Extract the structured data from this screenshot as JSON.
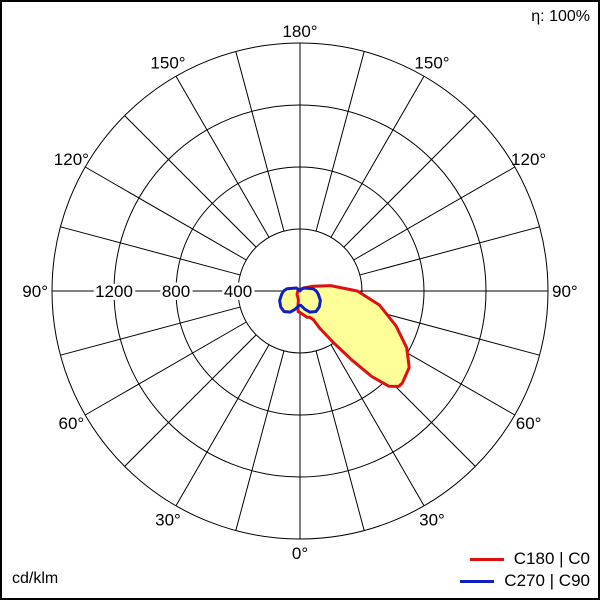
{
  "efficiency_label": "η: 100%",
  "unit_label": "cd/klm",
  "legend": [
    {
      "name": "C180 | C0",
      "color": "#e01010"
    },
    {
      "name": "C270 | C90",
      "color": "#1020c0"
    }
  ],
  "colors": {
    "fill": "#ffff99",
    "grid": "#000000"
  },
  "chart_data": {
    "type": "polar",
    "title": "",
    "radial_axis": {
      "unit": "cd/klm",
      "max": 1600,
      "rings": [
        400,
        800,
        1200,
        1600
      ],
      "tick_labels": [
        "400",
        "800",
        "1200"
      ]
    },
    "angular_ticks": {
      "left": [
        "180°",
        "150°",
        "120°",
        "90°",
        "60°",
        "30°",
        "0°"
      ],
      "right": [
        "150°",
        "120°",
        "90°",
        "60°",
        "30°"
      ]
    },
    "angle_step_deg": 15,
    "series": [
      {
        "name": "C180 | C0",
        "color": "#e01010",
        "curve": [
          {
            "angle": 180,
            "cd": 0
          },
          {
            "angle": 160,
            "cd": 10
          },
          {
            "angle": 140,
            "cd": 20
          },
          {
            "angle": 120,
            "cd": 45
          },
          {
            "angle": 110,
            "cd": 90
          },
          {
            "angle": 100,
            "cd": 200
          },
          {
            "angle": 90,
            "cd": 370
          },
          {
            "angle": 80,
            "cd": 520
          },
          {
            "angle": 70,
            "cd": 660
          },
          {
            "angle": 62,
            "cd": 780
          },
          {
            "angle": 55,
            "cd": 860
          },
          {
            "angle": 48,
            "cd": 888
          },
          {
            "angle": 46,
            "cd": 886
          },
          {
            "angle": 43,
            "cd": 840
          },
          {
            "angle": 40,
            "cd": 720
          },
          {
            "angle": 37,
            "cd": 560
          },
          {
            "angle": 33,
            "cd": 400
          },
          {
            "angle": 28,
            "cd": 270
          },
          {
            "angle": 25,
            "cd": 205
          },
          {
            "angle": 20,
            "cd": 180
          },
          {
            "angle": 15,
            "cd": 175
          },
          {
            "angle": 10,
            "cd": 160
          },
          {
            "angle": 5,
            "cd": 148
          },
          {
            "angle": 0,
            "cd": 138
          },
          {
            "angle": -3,
            "cd": 137
          },
          {
            "angle": -5,
            "cd": 135
          },
          {
            "angle": -8,
            "cd": 92
          },
          {
            "angle": -10,
            "cd": 60
          },
          {
            "angle": -20,
            "cd": 42
          },
          {
            "angle": -40,
            "cd": 30
          },
          {
            "angle": -90,
            "cd": 15
          },
          {
            "angle": -150,
            "cd": 5
          },
          {
            "angle": -180,
            "cd": 0
          }
        ]
      },
      {
        "name": "C270 | C90",
        "color": "#1020c0",
        "curve": [
          {
            "angle": 180,
            "cd": 0
          },
          {
            "angle": 160,
            "cd": 6
          },
          {
            "angle": 130,
            "cd": 30
          },
          {
            "angle": 100,
            "cd": 85
          },
          {
            "angle": 90,
            "cd": 105
          },
          {
            "angle": 80,
            "cd": 120
          },
          {
            "angle": 65,
            "cd": 145
          },
          {
            "angle": 50,
            "cd": 162
          },
          {
            "angle": 38,
            "cd": 168
          },
          {
            "angle": 25,
            "cd": 150
          },
          {
            "angle": 15,
            "cd": 122
          },
          {
            "angle": 8,
            "cd": 102
          },
          {
            "angle": 3,
            "cd": 93
          },
          {
            "angle": 0,
            "cd": 92
          },
          {
            "angle": -3,
            "cd": 93
          },
          {
            "angle": -8,
            "cd": 102
          },
          {
            "angle": -15,
            "cd": 122
          },
          {
            "angle": -25,
            "cd": 150
          },
          {
            "angle": -38,
            "cd": 168
          },
          {
            "angle": -50,
            "cd": 162
          },
          {
            "angle": -65,
            "cd": 145
          },
          {
            "angle": -80,
            "cd": 120
          },
          {
            "angle": -90,
            "cd": 105
          },
          {
            "angle": -100,
            "cd": 85
          },
          {
            "angle": -130,
            "cd": 30
          },
          {
            "angle": -160,
            "cd": 6
          },
          {
            "angle": -180,
            "cd": 0
          }
        ]
      }
    ],
    "grid": true,
    "legend_position": "bottom-right"
  }
}
